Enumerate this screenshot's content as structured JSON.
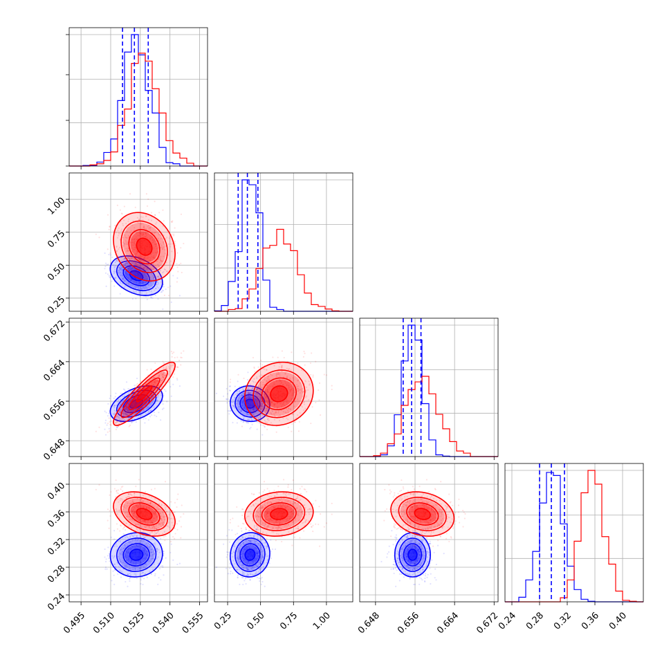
{
  "chart_data": {
    "type": "corner",
    "title": "",
    "grid": true,
    "parameters": [
      {
        "range": [
          0.489,
          0.559
        ],
        "ticks": [
          0.495,
          0.51,
          0.525,
          0.54,
          0.555
        ],
        "tick_labels": [
          "0.495",
          "0.510",
          "0.525",
          "0.540",
          "0.555"
        ]
      },
      {
        "range": [
          0.15,
          1.2
        ],
        "ticks": [
          0.25,
          0.5,
          0.75,
          1.0
        ],
        "tick_labels": [
          "0.25",
          "0.50",
          "0.75",
          "1.00"
        ]
      },
      {
        "range": [
          0.6448,
          0.6728
        ],
        "ticks": [
          0.648,
          0.656,
          0.664,
          0.672
        ],
        "tick_labels": [
          "0.648",
          "0.656",
          "0.664",
          "0.672"
        ]
      },
      {
        "range": [
          0.23,
          0.43
        ],
        "ticks": [
          0.24,
          0.28,
          0.32,
          0.36,
          0.4
        ],
        "tick_labels": [
          "0.24",
          "0.28",
          "0.32",
          "0.36",
          "0.40"
        ]
      }
    ],
    "series": [
      {
        "color": "#0000ff",
        "mean": [
          0.523,
          0.42,
          0.6555,
          0.298
        ],
        "sd": [
          0.0066,
          0.075,
          0.0018,
          0.016
        ],
        "corr": [
          [
            0,
            1,
            -0.35
          ],
          [
            0,
            2,
            0.45
          ],
          [
            0,
            3,
            0.05
          ],
          [
            1,
            2,
            -0.05
          ],
          [
            1,
            3,
            0.05
          ],
          [
            2,
            3,
            0.0
          ]
        ],
        "quantiles": [
          [
            0.516,
            0.522,
            0.529
          ],
          [
            0.33,
            0.4,
            0.48
          ],
          [
            0.6536,
            0.6553,
            0.6572
          ],
          [
            0.28,
            0.297,
            0.316
          ]
        ]
      },
      {
        "color": "#ff0000",
        "mean": [
          0.527,
          0.64,
          0.6575,
          0.357
        ],
        "sd": [
          0.0078,
          0.13,
          0.0032,
          0.016
        ],
        "corr": [
          [
            0,
            1,
            -0.2
          ],
          [
            0,
            2,
            0.9
          ],
          [
            0,
            3,
            -0.35
          ],
          [
            1,
            2,
            0.1
          ],
          [
            1,
            3,
            0.1
          ],
          [
            2,
            3,
            -0.2
          ]
        ]
      }
    ]
  }
}
